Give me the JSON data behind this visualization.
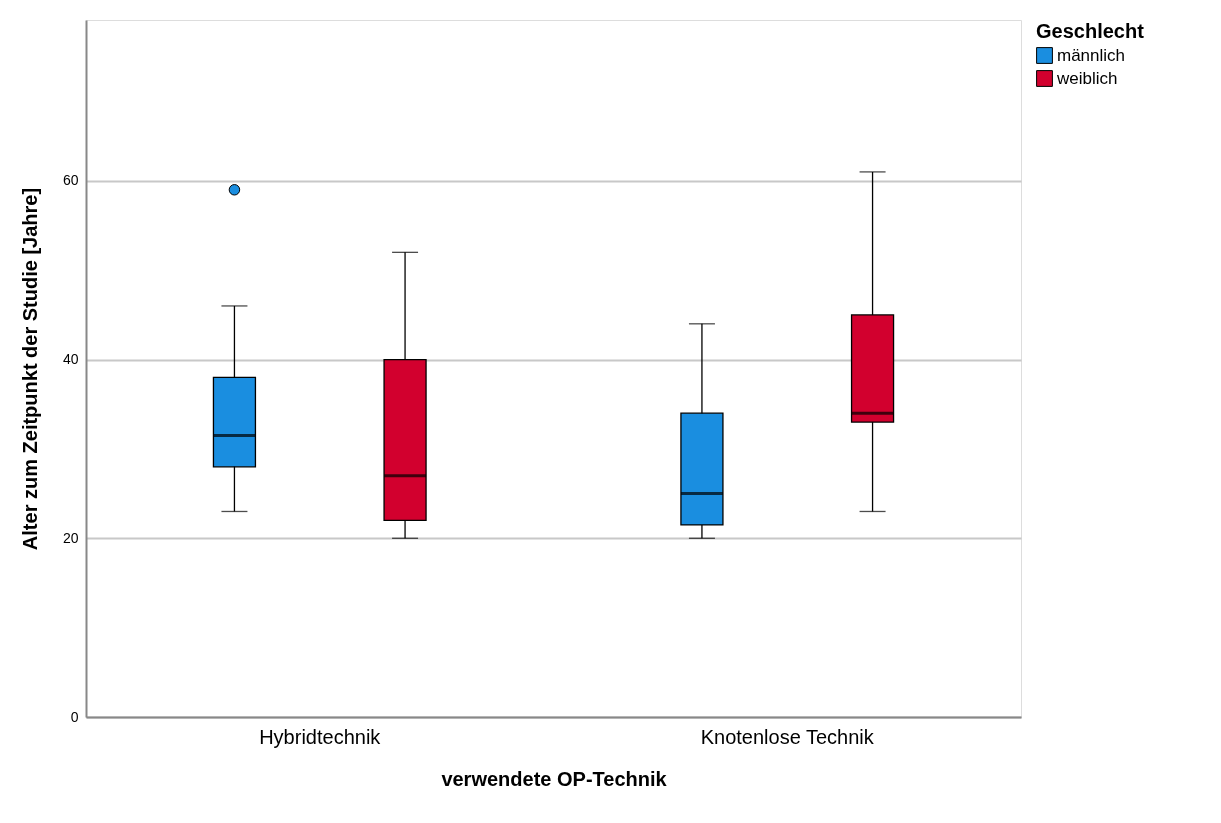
{
  "chart_data": {
    "type": "box",
    "xlabel": "verwendete OP-Technik",
    "ylabel": "Alter zum Zeitpunkt der Studie [Jahre]",
    "legend_title": "Geschlecht",
    "categories": [
      "Hybridtechnik",
      "Knotenlose Technik"
    ],
    "series": [
      {
        "name": "männlich",
        "color": "#1a8ee0",
        "boxes": [
          {
            "low": 23,
            "q1": 28,
            "median": 31.5,
            "q3": 38,
            "high": 46,
            "outliers": [
              59
            ]
          },
          {
            "low": 20,
            "q1": 21.5,
            "median": 25,
            "q3": 34,
            "high": 44
          }
        ]
      },
      {
        "name": "weiblich",
        "color": "#d2002e",
        "boxes": [
          {
            "low": 20,
            "q1": 22,
            "median": 27,
            "q3": 40,
            "high": 52
          },
          {
            "low": 23,
            "q1": 33,
            "median": 34,
            "q3": 45,
            "high": 61
          }
        ]
      }
    ],
    "ylim": [
      0,
      78
    ],
    "yticks": [
      0,
      20,
      40,
      60
    ],
    "grid": "y",
    "legend": "top right"
  }
}
